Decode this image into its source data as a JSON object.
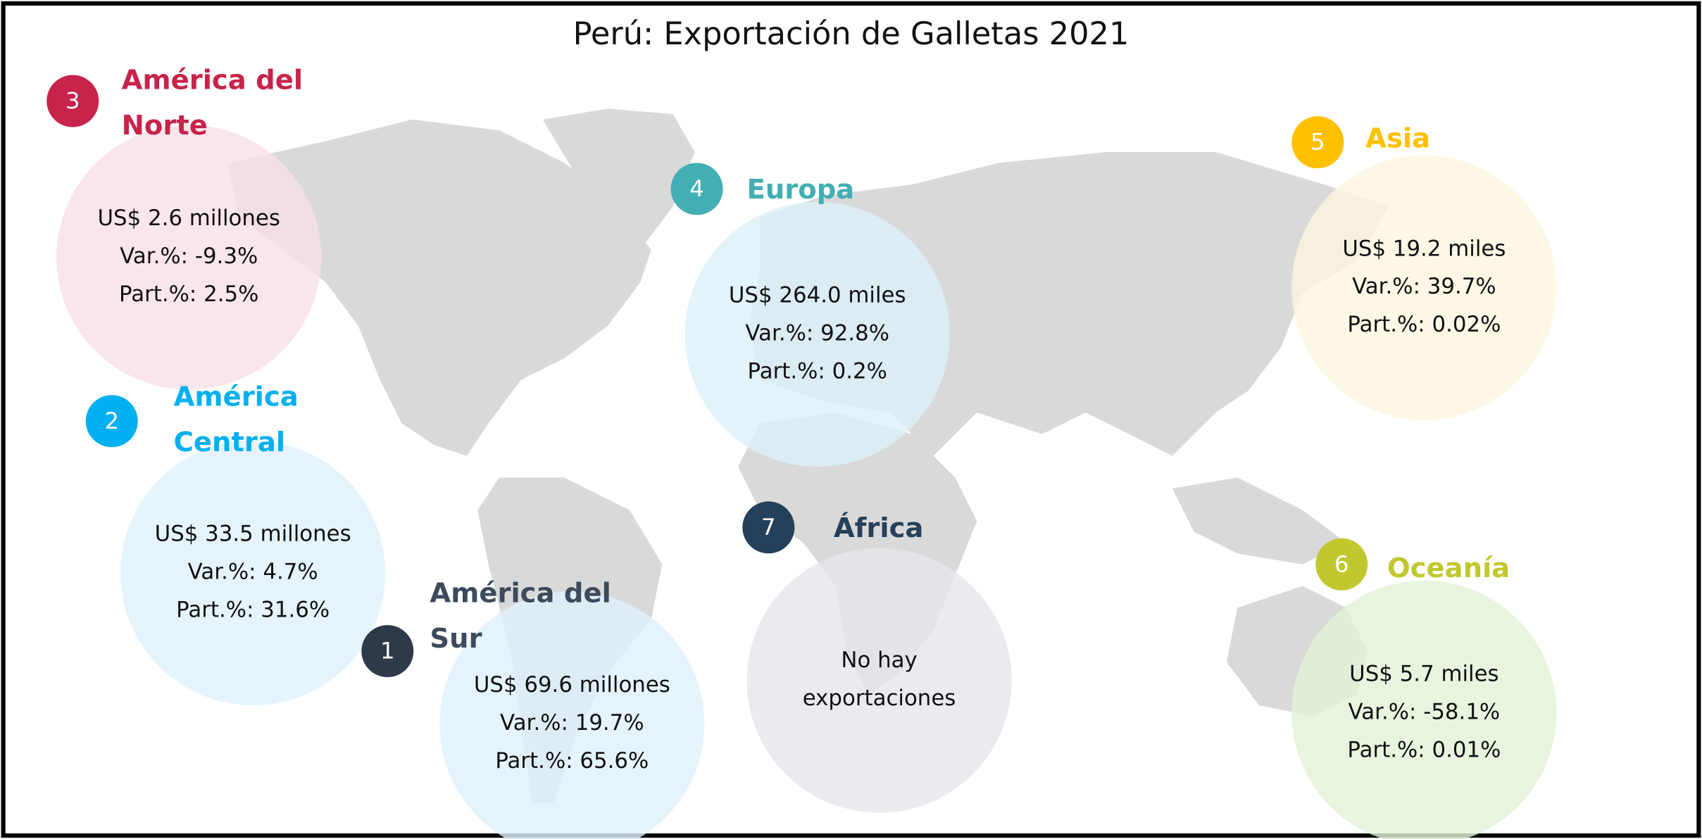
{
  "title": "Perú: Exportación de Galletas 2021",
  "regions": [
    {
      "number": "3",
      "name_lines": [
        "América del",
        "Norte"
      ],
      "color": "#c8234a",
      "bubble_color": "#f8e0e6",
      "lines": [
        "US$ 2.6 millones",
        "Var.%: -9.3%",
        "Part.%: 2.5%"
      ]
    },
    {
      "number": "2",
      "name_lines": [
        "América",
        "Central"
      ],
      "color": "#00b0f0",
      "bubble_color": "#dff2fb",
      "lines": [
        "US$ 33.5 millones",
        "Var.%: 4.7%",
        "Part.%: 31.6%"
      ]
    },
    {
      "number": "1",
      "name_lines": [
        "América del",
        "Sur"
      ],
      "color": "#2e3a4a",
      "bubble_color": "#dff2fb",
      "lines": [
        "US$  69.6 millones",
        "Var.%: 19.7%",
        "Part.%: 65.6%"
      ]
    },
    {
      "number": "4",
      "name_lines": [
        "Europa"
      ],
      "color": "#43aeb3",
      "bubble_color": "#dcf0f9",
      "lines": [
        "US$ 264.0 miles",
        "Var.%: 92.8%",
        "Part.%: 0.2%"
      ]
    },
    {
      "number": "5",
      "name_lines": [
        "Asia"
      ],
      "color": "#ffc000",
      "bubble_color": "#fdf5df",
      "lines": [
        "US$ 19.2 miles",
        "Var.%: 39.7%",
        "Part.%: 0.02%"
      ]
    },
    {
      "number": "6",
      "name_lines": [
        "Oceanía"
      ],
      "color": "#c0c82e",
      "bubble_color": "#e4f2d8",
      "lines": [
        "US$ 5.7 miles",
        "Var.%: -58.1%",
        "Part.%: 0.01%"
      ]
    },
    {
      "number": "7",
      "name_lines": [
        "África"
      ],
      "color": "#25405a",
      "bubble_color": "#e4e7ec",
      "lines": [
        "No hay",
        "exportaciones"
      ]
    }
  ]
}
